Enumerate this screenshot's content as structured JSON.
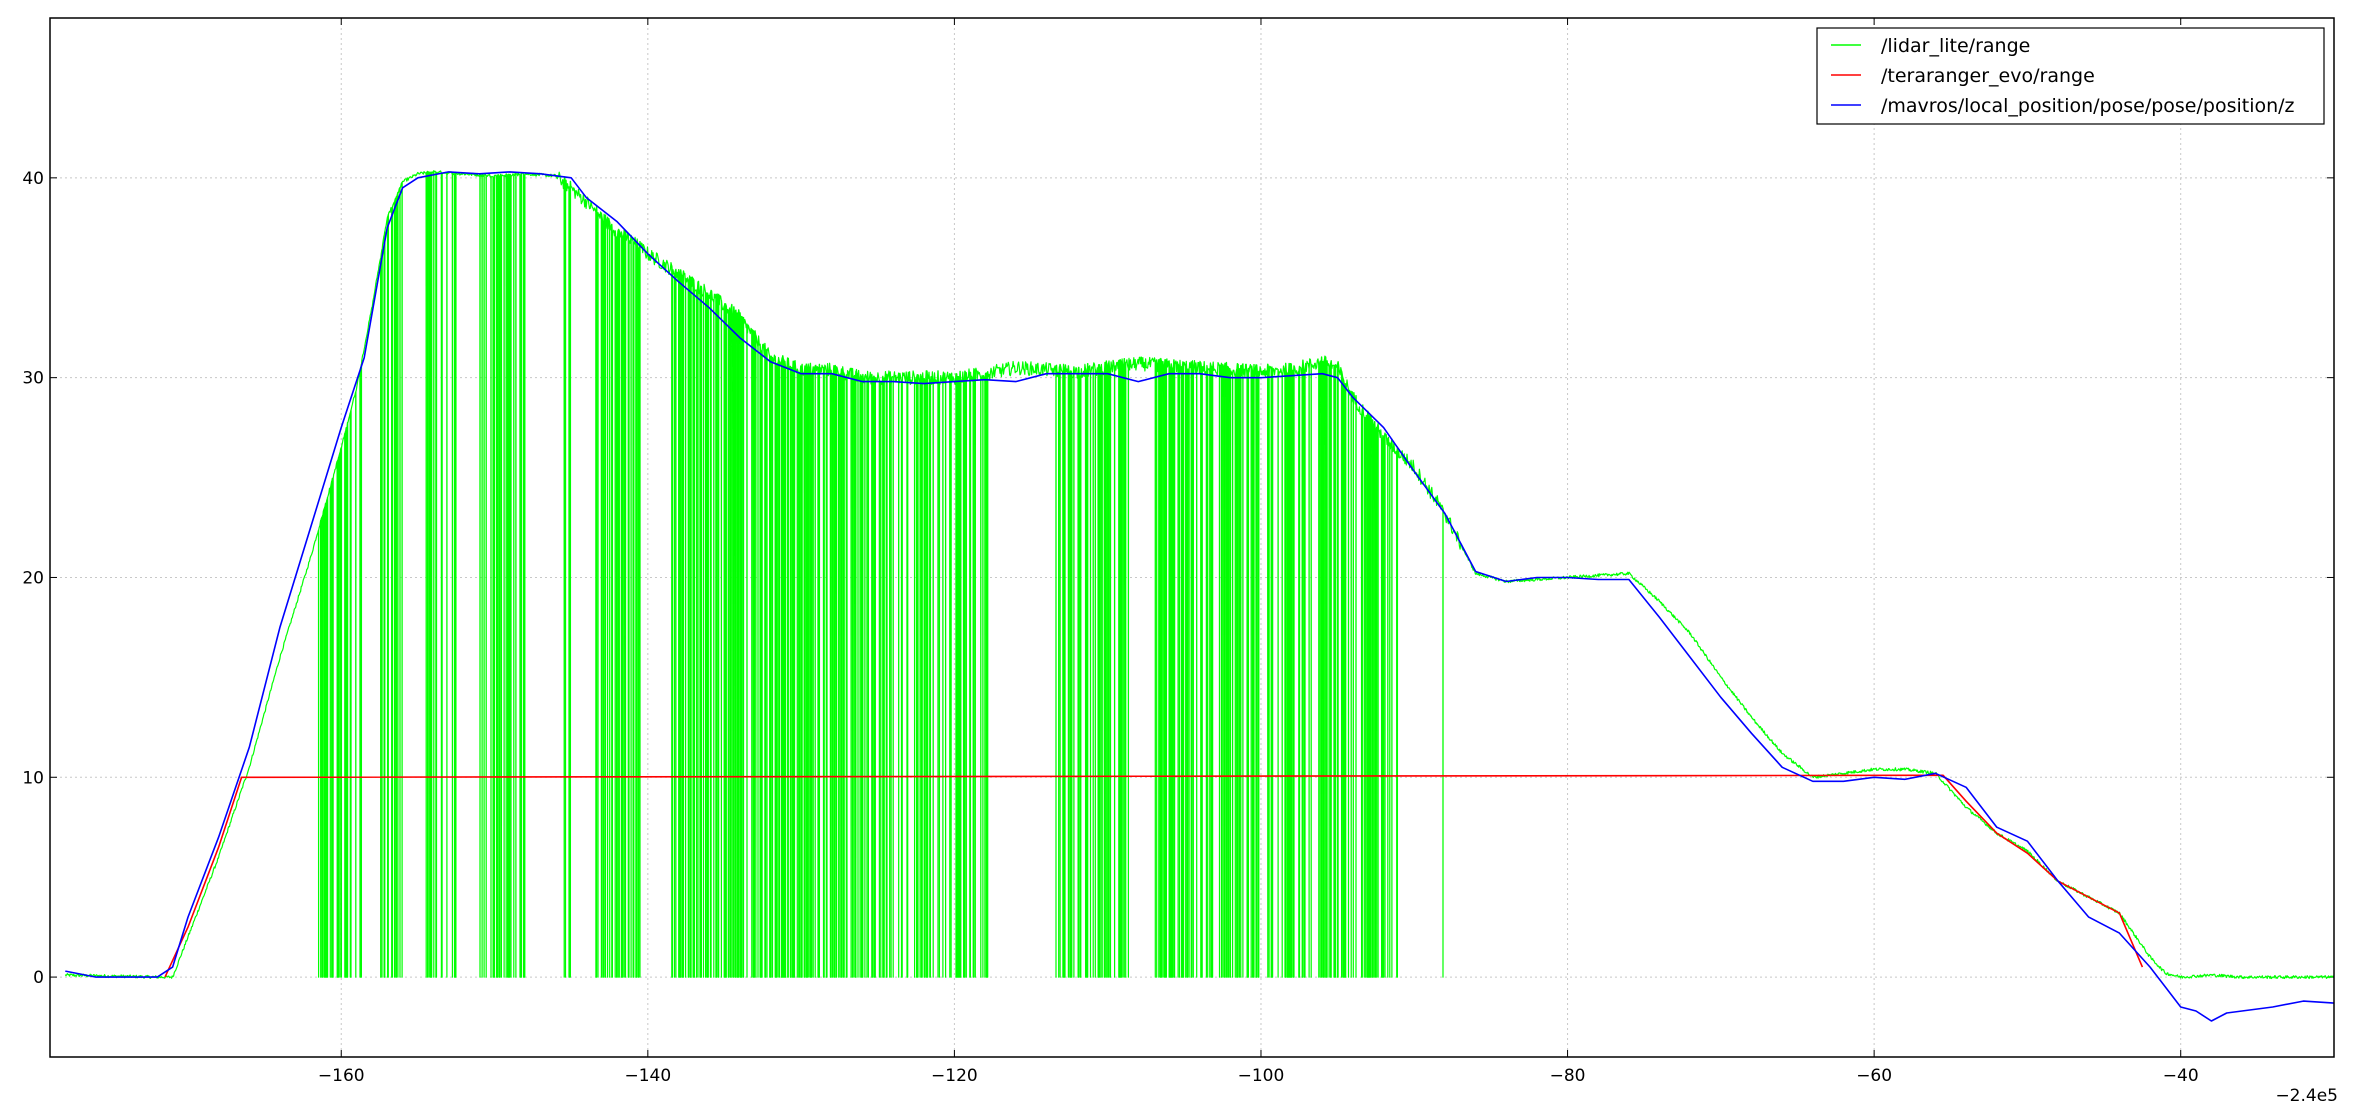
{
  "chart_data": {
    "type": "line",
    "title": "",
    "xlabel": "",
    "ylabel": "",
    "x_offset_label": "−2.4e5",
    "xlim": [
      -179,
      -30
    ],
    "ylim": [
      -4,
      48
    ],
    "x_ticks": [
      -160,
      -140,
      -120,
      -100,
      -80,
      -60,
      -40
    ],
    "x_tick_labels": [
      "−160",
      "−140",
      "−120",
      "−100",
      "−80",
      "−60",
      "−40"
    ],
    "y_ticks": [
      0,
      10,
      20,
      30,
      40
    ],
    "y_tick_labels": [
      "0",
      "10",
      "20",
      "30",
      "40"
    ],
    "grid": true,
    "legend_position": "top-right",
    "series": [
      {
        "name": "/lidar_lite/range",
        "color": "#00ff00",
        "style": "noisy-with-dropouts",
        "x": [
          -178,
          -172,
          -171,
          -170,
          -168,
          -166,
          -164,
          -162,
          -160,
          -159,
          -158,
          -157,
          -156,
          -155,
          -154,
          -152,
          -150,
          -148,
          -146,
          -144,
          -143,
          -142,
          -141,
          -140,
          -138,
          -136,
          -134,
          -133,
          -132,
          -130,
          -128,
          -126,
          -124,
          -122,
          -120,
          -118,
          -116,
          -114,
          -112,
          -110,
          -108,
          -106,
          -104,
          -102,
          -100,
          -98,
          -96,
          -95,
          -94,
          -93,
          -92,
          -90,
          -88,
          -86,
          -84,
          -82,
          -80,
          -78,
          -76,
          -74,
          -72,
          -70,
          -68,
          -66,
          -64,
          -62,
          -60,
          -58,
          -56,
          -54,
          -52,
          -50,
          -48,
          -46,
          -44,
          -42,
          -41,
          -40,
          -38,
          -36,
          -34,
          -32,
          -30
        ],
        "values": [
          0.1,
          0.0,
          0.0,
          2.0,
          6.0,
          10.5,
          16.0,
          21.0,
          26.5,
          29.5,
          33.5,
          38.0,
          39.8,
          40.2,
          40.3,
          40.2,
          40.1,
          40.2,
          40.1,
          38.8,
          38.0,
          37.3,
          36.8,
          36.2,
          35.2,
          34.2,
          33.0,
          32.0,
          31.0,
          30.4,
          30.4,
          30.0,
          30.0,
          30.0,
          30.0,
          30.2,
          30.5,
          30.4,
          30.3,
          30.5,
          30.7,
          30.6,
          30.5,
          30.4,
          30.3,
          30.4,
          30.8,
          30.5,
          29.0,
          28.0,
          27.0,
          25.5,
          23.2,
          20.2,
          19.8,
          19.9,
          20.0,
          20.1,
          20.2,
          18.8,
          17.2,
          15.0,
          13.0,
          11.2,
          10.0,
          10.2,
          10.4,
          10.4,
          10.2,
          8.5,
          7.2,
          6.3,
          4.8,
          4.0,
          3.2,
          1.0,
          0.2,
          0.0,
          0.1,
          0.0,
          0.0,
          0.0,
          0.0
        ],
        "dropout_ranges": [
          [
            -161.5,
            -158.5
          ],
          [
            -157.5,
            -156
          ],
          [
            -154.5,
            -152.5
          ],
          [
            -151,
            -148
          ],
          [
            -145.5,
            -145
          ],
          [
            -143.5,
            -140.5
          ],
          [
            -138.5,
            -117.5
          ],
          [
            -113.5,
            -108.5
          ],
          [
            -107,
            -104
          ],
          [
            -104,
            -91
          ],
          [
            -88.3,
            -88.1
          ]
        ]
      },
      {
        "name": "/teraranger_evo/range",
        "color": "#ff0000",
        "style": "line",
        "x": [
          -171.5,
          -170,
          -168,
          -166.5,
          -55.5,
          -54,
          -52,
          -50,
          -48,
          -46,
          -44,
          -42.5
        ],
        "values": [
          0.0,
          2.5,
          6.5,
          10.0,
          10.1,
          8.8,
          7.2,
          6.2,
          4.8,
          4.0,
          3.2,
          0.5
        ]
      },
      {
        "name": "/mavros/local_position/pose/pose/position/z",
        "color": "#0000ff",
        "style": "line",
        "x": [
          -178,
          -176,
          -174,
          -172,
          -171,
          -170,
          -168,
          -166,
          -164,
          -162,
          -160,
          -158.5,
          -157,
          -156,
          -155,
          -153,
          -151,
          -149,
          -147,
          -146,
          -145,
          -144,
          -142,
          -140,
          -138,
          -136,
          -134,
          -132,
          -130,
          -128,
          -126,
          -124,
          -122,
          -120,
          -118,
          -116,
          -114,
          -112,
          -110,
          -108,
          -106,
          -104,
          -102,
          -100,
          -98,
          -96,
          -95,
          -94,
          -92,
          -90,
          -88,
          -86,
          -84,
          -82,
          -80,
          -78,
          -76,
          -74,
          -72,
          -70,
          -68,
          -66,
          -64,
          -62,
          -60,
          -58,
          -56,
          -54,
          -52,
          -50,
          -48,
          -46,
          -44,
          -42,
          -40,
          -39,
          -38,
          -37,
          -36,
          -34,
          -32,
          -30
        ],
        "values": [
          0.3,
          0.0,
          0.0,
          0.0,
          0.5,
          3.0,
          7.0,
          11.5,
          17.5,
          22.5,
          27.5,
          31.0,
          37.5,
          39.5,
          40.0,
          40.3,
          40.2,
          40.3,
          40.2,
          40.1,
          40.0,
          39.0,
          37.8,
          36.2,
          34.8,
          33.5,
          32.0,
          30.8,
          30.2,
          30.2,
          29.8,
          29.8,
          29.7,
          29.8,
          29.9,
          29.8,
          30.2,
          30.2,
          30.2,
          29.8,
          30.2,
          30.2,
          30.0,
          30.0,
          30.1,
          30.2,
          30.0,
          29.0,
          27.5,
          25.3,
          23.2,
          20.3,
          19.8,
          20.0,
          20.0,
          19.9,
          19.9,
          18.0,
          16.0,
          14.0,
          12.2,
          10.5,
          9.8,
          9.8,
          10.0,
          9.9,
          10.2,
          9.5,
          7.5,
          6.8,
          4.8,
          3.0,
          2.2,
          0.5,
          -1.5,
          -1.7,
          -2.2,
          -1.8,
          -1.7,
          -1.5,
          -1.2,
          -1.3
        ]
      }
    ]
  }
}
